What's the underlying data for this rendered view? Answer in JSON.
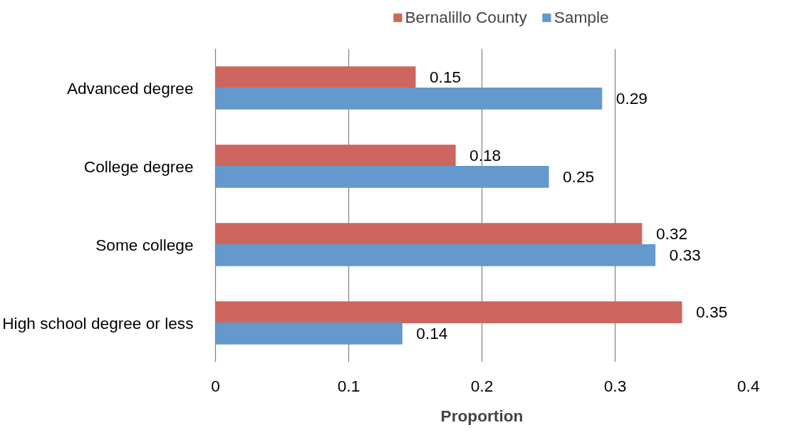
{
  "chart_data": {
    "type": "bar",
    "orientation": "horizontal",
    "xlabel": "Proportion",
    "categories": [
      "Advanced degree",
      "College degree",
      "Some college",
      "High school degree or less"
    ],
    "series": [
      {
        "name": "Bernalillo County",
        "color": "#cd665e",
        "values": [
          0.15,
          0.18,
          0.32,
          0.35
        ]
      },
      {
        "name": "Sample",
        "color": "#6399cc",
        "values": [
          0.29,
          0.25,
          0.33,
          0.14
        ]
      }
    ],
    "xlim": [
      0,
      0.4
    ],
    "xticks": [
      0,
      0.1,
      0.2,
      0.3,
      0.4
    ],
    "grid": "x",
    "legend": "top",
    "data_labels": true
  }
}
